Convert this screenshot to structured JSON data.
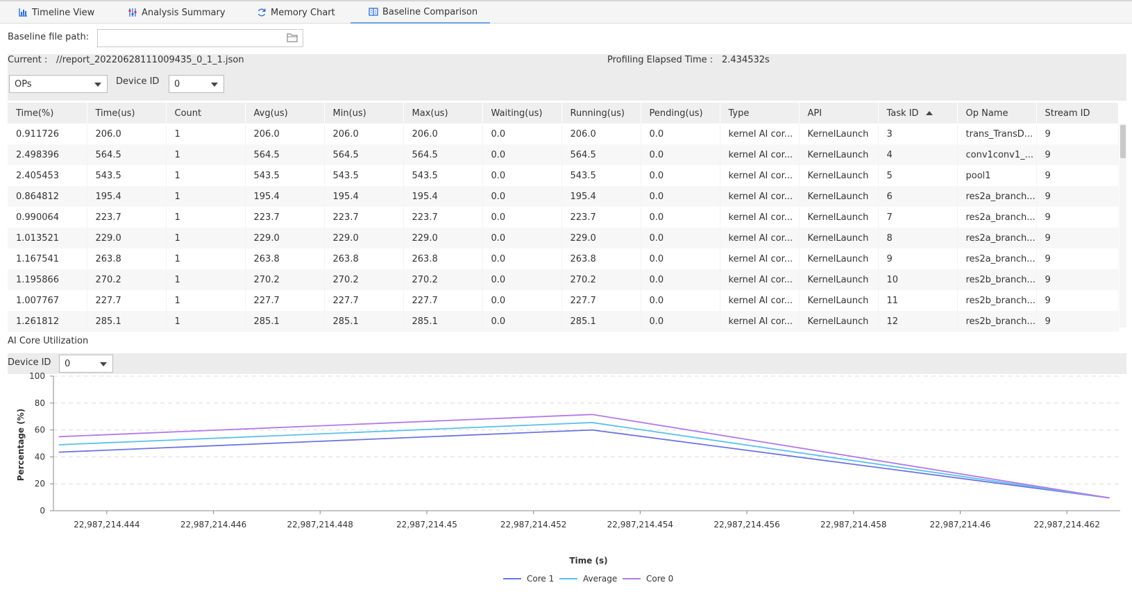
{
  "tabs": [
    {
      "label": "Timeline View",
      "icon": "bar-chart-icon"
    },
    {
      "label": "Analysis Summary",
      "icon": "sliders-icon"
    },
    {
      "label": "Memory Chart",
      "icon": "refresh-icon"
    },
    {
      "label": "Baseline Comparison",
      "icon": "compare-icon",
      "active": true
    }
  ],
  "baseline": {
    "label": "Baseline file path:",
    "value": ""
  },
  "info": {
    "current_label": "Current :",
    "current_value": "//report_20220628111009435_0_1_1.json",
    "elapsed_label": "Profiling Elapsed Time :",
    "elapsed_value": "2.434532s",
    "view_select": "OPs",
    "device_label": "Device ID",
    "device_value": "0"
  },
  "table": {
    "columns": [
      "Time(%)",
      "Time(us)",
      "Count",
      "Avg(us)",
      "Min(us)",
      "Max(us)",
      "Waiting(us)",
      "Running(us)",
      "Pending(us)",
      "Type",
      "API",
      "Task ID",
      "Op Name",
      "Stream ID"
    ],
    "sorted_column": "Task ID",
    "rows": [
      [
        "0.911726",
        "206.0",
        "1",
        "206.0",
        "206.0",
        "206.0",
        "0.0",
        "206.0",
        "0.0",
        "kernel AI cor...",
        "KernelLaunch",
        "3",
        "trans_TransD...",
        "9"
      ],
      [
        "2.498396",
        "564.5",
        "1",
        "564.5",
        "564.5",
        "564.5",
        "0.0",
        "564.5",
        "0.0",
        "kernel AI cor...",
        "KernelLaunch",
        "4",
        "conv1conv1_...",
        "9"
      ],
      [
        "2.405453",
        "543.5",
        "1",
        "543.5",
        "543.5",
        "543.5",
        "0.0",
        "543.5",
        "0.0",
        "kernel AI cor...",
        "KernelLaunch",
        "5",
        "pool1",
        "9"
      ],
      [
        "0.864812",
        "195.4",
        "1",
        "195.4",
        "195.4",
        "195.4",
        "0.0",
        "195.4",
        "0.0",
        "kernel AI cor...",
        "KernelLaunch",
        "6",
        "res2a_branch...",
        "9"
      ],
      [
        "0.990064",
        "223.7",
        "1",
        "223.7",
        "223.7",
        "223.7",
        "0.0",
        "223.7",
        "0.0",
        "kernel AI cor...",
        "KernelLaunch",
        "7",
        "res2a_branch...",
        "9"
      ],
      [
        "1.013521",
        "229.0",
        "1",
        "229.0",
        "229.0",
        "229.0",
        "0.0",
        "229.0",
        "0.0",
        "kernel AI cor...",
        "KernelLaunch",
        "8",
        "res2a_branch...",
        "9"
      ],
      [
        "1.167541",
        "263.8",
        "1",
        "263.8",
        "263.8",
        "263.8",
        "0.0",
        "263.8",
        "0.0",
        "kernel AI cor...",
        "KernelLaunch",
        "9",
        "res2a_branch...",
        "9"
      ],
      [
        "1.195866",
        "270.2",
        "1",
        "270.2",
        "270.2",
        "270.2",
        "0.0",
        "270.2",
        "0.0",
        "kernel AI cor...",
        "KernelLaunch",
        "10",
        "res2b_branch...",
        "9"
      ],
      [
        "1.007767",
        "227.7",
        "1",
        "227.7",
        "227.7",
        "227.7",
        "0.0",
        "227.7",
        "0.0",
        "kernel AI cor...",
        "KernelLaunch",
        "11",
        "res2b_branch...",
        "9"
      ],
      [
        "1.261812",
        "285.1",
        "1",
        "285.1",
        "285.1",
        "285.1",
        "0.0",
        "285.1",
        "0.0",
        "kernel AI cor...",
        "KernelLaunch",
        "12",
        "res2b_branch...",
        "9"
      ]
    ]
  },
  "aicore": {
    "title": "AI Core Utilization",
    "device_label": "Device ID",
    "device_value": "0"
  },
  "chart_data": {
    "type": "line",
    "xlabel": "Time (s)",
    "ylabel": "Percentage (%)",
    "ylim": [
      0,
      100
    ],
    "yticks": [
      0,
      20,
      40,
      60,
      80,
      100
    ],
    "xlim": [
      22987214.443,
      22987214.463
    ],
    "xticks": [
      {
        "value": 22987214.444,
        "label": "22,987,214.444"
      },
      {
        "value": 22987214.446,
        "label": "22,987,214.446"
      },
      {
        "value": 22987214.448,
        "label": "22,987,214.448"
      },
      {
        "value": 22987214.45,
        "label": "22,987,214.45"
      },
      {
        "value": 22987214.452,
        "label": "22,987,214.452"
      },
      {
        "value": 22987214.454,
        "label": "22,987,214.454"
      },
      {
        "value": 22987214.456,
        "label": "22,987,214.456"
      },
      {
        "value": 22987214.458,
        "label": "22,987,214.458"
      },
      {
        "value": 22987214.46,
        "label": "22,987,214.46"
      },
      {
        "value": 22987214.462,
        "label": "22,987,214.462"
      }
    ],
    "grid": "horizontal-dashed",
    "legend": "bottom-center",
    "x": [
      22987214.4431,
      22987214.4531,
      22987214.4628
    ],
    "series": [
      {
        "name": "Core 1",
        "color": "#6b74e0",
        "values": [
          43.5,
          60.0,
          9.5
        ]
      },
      {
        "name": "Average",
        "color": "#5bc0ea",
        "values": [
          49.0,
          65.5,
          9.5
        ]
      },
      {
        "name": "Core 0",
        "color": "#b37ae8",
        "values": [
          55.0,
          71.5,
          9.5
        ]
      }
    ]
  }
}
